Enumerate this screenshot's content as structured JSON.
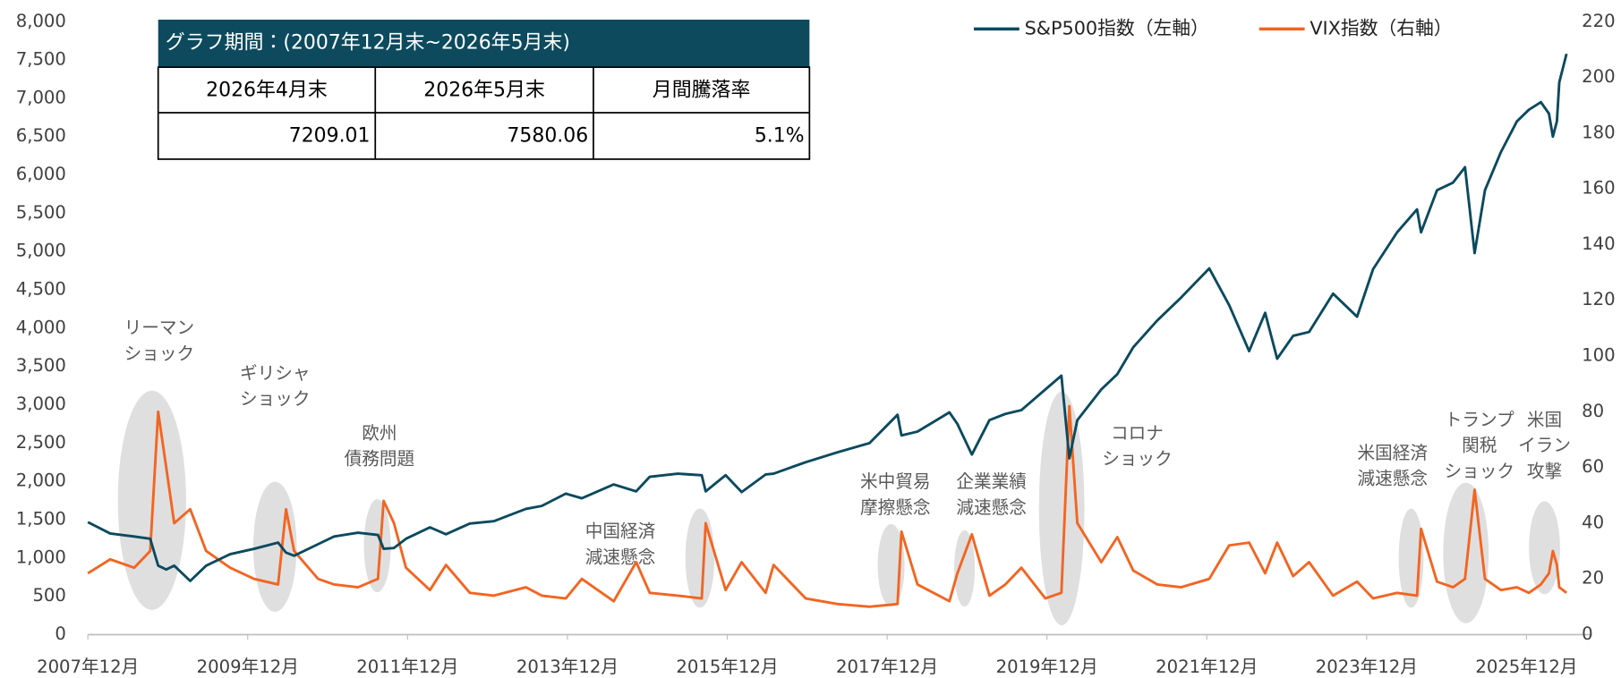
{
  "chart_data": {
    "type": "line",
    "x": [
      2007.92,
      2008.2,
      2008.5,
      2008.7,
      2008.8,
      2008.9,
      2009.0,
      2009.2,
      2009.4,
      2009.7,
      2010.0,
      2010.3,
      2010.4,
      2010.5,
      2010.8,
      2011.0,
      2011.3,
      2011.55,
      2011.62,
      2011.75,
      2011.9,
      2012.2,
      2012.4,
      2012.7,
      2013.0,
      2013.4,
      2013.6,
      2013.9,
      2014.1,
      2014.5,
      2014.78,
      2014.95,
      2015.3,
      2015.6,
      2015.65,
      2015.9,
      2016.1,
      2016.4,
      2016.5,
      2016.9,
      2017.3,
      2017.7,
      2018.05,
      2018.1,
      2018.3,
      2018.7,
      2018.8,
      2018.98,
      2019.2,
      2019.4,
      2019.6,
      2019.9,
      2020.1,
      2020.2,
      2020.3,
      2020.6,
      2020.8,
      2021.0,
      2021.3,
      2021.6,
      2021.95,
      2022.2,
      2022.45,
      2022.65,
      2022.8,
      2023.0,
      2023.2,
      2023.5,
      2023.8,
      2024.0,
      2024.3,
      2024.55,
      2024.6,
      2024.8,
      2025.0,
      2025.15,
      2025.27,
      2025.4,
      2025.6,
      2025.8,
      2025.95,
      2026.1,
      2026.2,
      2026.25,
      2026.3,
      2026.33,
      2026.42
    ],
    "series": [
      {
        "name": "S&P500指数（左軸）",
        "color": "#0b4a5e",
        "values": [
          1468,
          1320,
          1280,
          1250,
          900,
          850,
          900,
          700,
          900,
          1050,
          1120,
          1200,
          1070,
          1030,
          1180,
          1280,
          1330,
          1300,
          1120,
          1130,
          1250,
          1400,
          1310,
          1450,
          1480,
          1640,
          1680,
          1840,
          1780,
          1960,
          1870,
          2060,
          2100,
          2080,
          1870,
          2080,
          1860,
          2090,
          2100,
          2250,
          2380,
          2500,
          2870,
          2600,
          2650,
          2900,
          2750,
          2350,
          2800,
          2880,
          2930,
          3200,
          3380,
          2300,
          2800,
          3200,
          3400,
          3750,
          4100,
          4400,
          4780,
          4300,
          3700,
          4200,
          3600,
          3900,
          3950,
          4450,
          4150,
          4770,
          5250,
          5550,
          5250,
          5800,
          5900,
          6100,
          4980,
          5800,
          6300,
          6700,
          6850,
          6950,
          6800,
          6500,
          6700,
          7209,
          7580
        ]
      },
      {
        "name": "VIX指数（右軸）",
        "color": "#f26522",
        "axis": "y2",
        "values": [
          22,
          27,
          24,
          30,
          80,
          60,
          40,
          45,
          30,
          24,
          20,
          18,
          45,
          30,
          20,
          18,
          17,
          20,
          48,
          40,
          24,
          16,
          25,
          15,
          14,
          17,
          14,
          13,
          20,
          12,
          26,
          15,
          14,
          13,
          40,
          16,
          26,
          15,
          25,
          13,
          11,
          10,
          11,
          37,
          18,
          12,
          22,
          36,
          14,
          18,
          24,
          13,
          15,
          82,
          40,
          26,
          35,
          23,
          18,
          17,
          20,
          32,
          33,
          22,
          33,
          21,
          26,
          14,
          19,
          13,
          15,
          14,
          38,
          19,
          17,
          20,
          52,
          20,
          16,
          17,
          15,
          18,
          22,
          30,
          25,
          17,
          15
        ]
      }
    ],
    "xlim": [
      2007.92,
      2026.74
    ],
    "xticks": [
      {
        "value": 2007.92,
        "label": "2007年12月"
      },
      {
        "value": 2009.92,
        "label": "2009年12月"
      },
      {
        "value": 2011.92,
        "label": "2011年12月"
      },
      {
        "value": 2013.92,
        "label": "2013年12月"
      },
      {
        "value": 2015.92,
        "label": "2015年12月"
      },
      {
        "value": 2017.92,
        "label": "2017年12月"
      },
      {
        "value": 2019.92,
        "label": "2019年12月"
      },
      {
        "value": 2021.92,
        "label": "2021年12月"
      },
      {
        "value": 2023.92,
        "label": "2023年12月"
      },
      {
        "value": 2025.92,
        "label": "2025年12月"
      }
    ],
    "ylim": [
      0,
      8000
    ],
    "yticks": [
      0,
      500,
      {
        "value": 1000,
        "label": "1,000"
      },
      {
        "value": 1500,
        "label": "1,500"
      },
      {
        "value": 2000,
        "label": "2,000"
      },
      {
        "value": 2500,
        "label": "2,500"
      },
      {
        "value": 3000,
        "label": "3,000"
      },
      {
        "value": 3500,
        "label": "3,500"
      },
      {
        "value": 4000,
        "label": "4,000"
      },
      {
        "value": 4500,
        "label": "4,500"
      },
      {
        "value": 5000,
        "label": "5,000"
      },
      {
        "value": 5500,
        "label": "5,500"
      },
      {
        "value": 6000,
        "label": "6,000"
      },
      {
        "value": 6500,
        "label": "6,500"
      },
      {
        "value": 7000,
        "label": "7,000"
      },
      {
        "value": 7500,
        "label": "7,500"
      },
      {
        "value": 8000,
        "label": "8,000"
      }
    ],
    "y2lim": [
      0,
      220
    ],
    "y2ticks": [
      0,
      20,
      40,
      60,
      80,
      100,
      120,
      140,
      160,
      180,
      200,
      220
    ],
    "grid": false,
    "legend": "top-right",
    "annotations": [
      [
        "リーマン",
        "ショック"
      ],
      [
        "ギリシャ",
        "ショック"
      ],
      [
        "欧州",
        "債務問題"
      ],
      [
        "中国経済",
        "減速懸念"
      ],
      [
        "米中貿易",
        "摩擦懸念"
      ],
      [
        "企業業績",
        "減速懸念"
      ],
      [
        "コロナ",
        "ショック"
      ],
      [
        "米国経済",
        "減速懸念"
      ],
      [
        "トランプ",
        "関税",
        "ショック"
      ],
      [
        "米国",
        "イラン",
        "攻撃"
      ]
    ],
    "table": {
      "title": "グラフ期間：(2007年12月末~2026年5月末)",
      "header": [
        "2026年4月末",
        "2026年5月末",
        "月間騰落率"
      ],
      "row": [
        "7209.01",
        "7580.06",
        "5.1%"
      ]
    }
  }
}
